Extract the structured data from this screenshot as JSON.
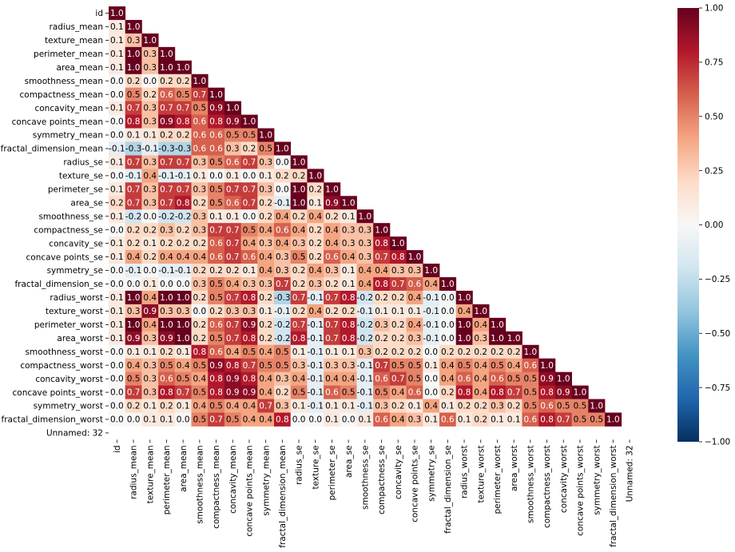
{
  "chart_data": {
    "type": "heatmap",
    "title": "",
    "xlabel": "",
    "ylabel": "",
    "mask": "upper-triangle",
    "vmin": -1.0,
    "vmax": 1.0,
    "colormap": "RdBu_r",
    "colormap_stops": [
      "#053061",
      "#2166ac",
      "#4393c3",
      "#92c5de",
      "#d1e5f0",
      "#f7f7f7",
      "#fddbc7",
      "#f4a582",
      "#d6604d",
      "#b2182b",
      "#67001f"
    ],
    "colorbar": {
      "placement": "right",
      "ticks": [
        1.0,
        0.75,
        0.5,
        0.25,
        0.0,
        -0.25,
        -0.5,
        -0.75,
        -1.0
      ],
      "tick_labels": [
        "1.00",
        "0.75",
        "0.50",
        "0.25",
        "0.00",
        "−0.25",
        "−0.50",
        "−0.75",
        "−1.00"
      ]
    },
    "labels": [
      "id",
      "radius_mean",
      "texture_mean",
      "perimeter_mean",
      "area_mean",
      "smoothness_mean",
      "compactness_mean",
      "concavity_mean",
      "concave points_mean",
      "symmetry_mean",
      "fractal_dimension_mean",
      "radius_se",
      "texture_se",
      "perimeter_se",
      "area_se",
      "smoothness_se",
      "compactness_se",
      "concavity_se",
      "concave points_se",
      "symmetry_se",
      "fractal_dimension_se",
      "radius_worst",
      "texture_worst",
      "perimeter_worst",
      "area_worst",
      "smoothness_worst",
      "compactness_worst",
      "concavity_worst",
      "concave points_worst",
      "symmetry_worst",
      "fractal_dimension_worst",
      "Unnamed: 32"
    ],
    "rows": [
      [
        1.0
      ],
      [
        0.1,
        1.0
      ],
      [
        0.1,
        0.3,
        1.0
      ],
      [
        0.1,
        1.0,
        0.3,
        1.0
      ],
      [
        0.1,
        1.0,
        0.3,
        1.0,
        1.0
      ],
      [
        -0.0,
        0.2,
        -0.0,
        0.2,
        0.2,
        1.0
      ],
      [
        0.0,
        0.5,
        0.2,
        0.6,
        0.5,
        0.7,
        1.0
      ],
      [
        0.1,
        0.7,
        0.3,
        0.7,
        0.7,
        0.5,
        0.9,
        1.0
      ],
      [
        0.0,
        0.8,
        0.3,
        0.9,
        0.8,
        0.6,
        0.8,
        0.9,
        1.0
      ],
      [
        -0.0,
        0.1,
        0.1,
        0.2,
        0.2,
        0.6,
        0.6,
        0.5,
        0.5,
        1.0
      ],
      [
        -0.1,
        -0.3,
        -0.1,
        -0.3,
        -0.3,
        0.6,
        0.6,
        0.3,
        0.2,
        0.5,
        1.0
      ],
      [
        0.1,
        0.7,
        0.3,
        0.7,
        0.7,
        0.3,
        0.5,
        0.6,
        0.7,
        0.3,
        0.0,
        1.0
      ],
      [
        -0.0,
        -0.1,
        0.4,
        -0.1,
        -0.1,
        0.1,
        0.0,
        0.1,
        0.0,
        0.1,
        0.2,
        0.2,
        1.0
      ],
      [
        0.1,
        0.7,
        0.3,
        0.7,
        0.7,
        0.3,
        0.5,
        0.7,
        0.7,
        0.3,
        0.0,
        1.0,
        0.2,
        1.0
      ],
      [
        0.2,
        0.7,
        0.3,
        0.7,
        0.8,
        0.2,
        0.5,
        0.6,
        0.7,
        0.2,
        -0.1,
        1.0,
        0.1,
        0.9,
        1.0
      ],
      [
        0.1,
        -0.2,
        0.0,
        -0.2,
        -0.2,
        0.3,
        0.1,
        0.1,
        0.0,
        0.2,
        0.4,
        0.2,
        0.4,
        0.2,
        0.1,
        1.0
      ],
      [
        0.0,
        0.2,
        0.2,
        0.3,
        0.2,
        0.3,
        0.7,
        0.7,
        0.5,
        0.4,
        0.6,
        0.4,
        0.2,
        0.4,
        0.3,
        0.3,
        1.0
      ],
      [
        0.1,
        0.2,
        0.1,
        0.2,
        0.2,
        0.2,
        0.6,
        0.7,
        0.4,
        0.3,
        0.4,
        0.3,
        0.2,
        0.4,
        0.3,
        0.3,
        0.8,
        1.0
      ],
      [
        0.1,
        0.4,
        0.2,
        0.4,
        0.4,
        0.4,
        0.6,
        0.7,
        0.6,
        0.4,
        0.3,
        0.5,
        0.2,
        0.6,
        0.4,
        0.3,
        0.7,
        0.8,
        1.0
      ],
      [
        -0.0,
        -0.1,
        0.0,
        -0.1,
        -0.1,
        0.2,
        0.2,
        0.2,
        0.1,
        0.4,
        0.3,
        0.2,
        0.4,
        0.3,
        0.1,
        0.4,
        0.4,
        0.3,
        0.3,
        1.0
      ],
      [
        0.0,
        -0.0,
        0.1,
        -0.0,
        -0.0,
        0.3,
        0.5,
        0.4,
        0.3,
        0.3,
        0.7,
        0.2,
        0.3,
        0.2,
        0.1,
        0.4,
        0.8,
        0.7,
        0.6,
        0.4,
        1.0
      ],
      [
        0.1,
        1.0,
        0.4,
        1.0,
        1.0,
        0.2,
        0.5,
        0.7,
        0.8,
        0.2,
        -0.3,
        0.7,
        -0.1,
        0.7,
        0.8,
        -0.2,
        0.2,
        0.2,
        0.4,
        -0.1,
        -0.0,
        1.0
      ],
      [
        0.1,
        0.3,
        0.9,
        0.3,
        0.3,
        0.0,
        0.2,
        0.3,
        0.3,
        0.1,
        -0.1,
        0.2,
        0.4,
        0.2,
        0.2,
        -0.1,
        0.1,
        0.1,
        0.1,
        -0.1,
        -0.0,
        0.4,
        1.0
      ],
      [
        0.1,
        1.0,
        0.4,
        1.0,
        1.0,
        0.2,
        0.6,
        0.7,
        0.9,
        0.2,
        -0.2,
        0.7,
        -0.1,
        0.7,
        0.8,
        -0.2,
        0.3,
        0.2,
        0.4,
        -0.1,
        -0.0,
        1.0,
        0.4,
        1.0
      ],
      [
        0.1,
        0.9,
        0.3,
        0.9,
        1.0,
        0.2,
        0.5,
        0.7,
        0.8,
        0.2,
        -0.2,
        0.8,
        -0.1,
        0.7,
        0.8,
        -0.2,
        0.2,
        0.2,
        0.3,
        -0.1,
        -0.0,
        1.0,
        0.3,
        1.0,
        1.0
      ],
      [
        0.0,
        0.1,
        0.1,
        0.2,
        0.1,
        0.8,
        0.6,
        0.4,
        0.5,
        0.4,
        0.5,
        0.1,
        -0.1,
        0.1,
        0.1,
        0.3,
        0.2,
        0.2,
        0.2,
        -0.0,
        0.2,
        0.2,
        0.2,
        0.2,
        0.2,
        1.0
      ],
      [
        -0.0,
        0.4,
        0.3,
        0.5,
        0.4,
        0.5,
        0.9,
        0.8,
        0.7,
        0.5,
        0.5,
        0.3,
        -0.1,
        0.3,
        0.3,
        -0.1,
        0.7,
        0.5,
        0.5,
        0.1,
        0.4,
        0.5,
        0.4,
        0.5,
        0.4,
        0.6,
        1.0
      ],
      [
        0.0,
        0.5,
        0.3,
        0.6,
        0.5,
        0.4,
        0.8,
        0.9,
        0.8,
        0.4,
        0.3,
        0.4,
        -0.1,
        0.4,
        0.4,
        -0.1,
        0.6,
        0.7,
        0.5,
        0.0,
        0.4,
        0.6,
        0.4,
        0.6,
        0.5,
        0.5,
        0.9,
        1.0
      ],
      [
        0.0,
        0.7,
        0.3,
        0.8,
        0.7,
        0.5,
        0.8,
        0.9,
        0.9,
        0.4,
        0.2,
        0.5,
        -0.1,
        0.6,
        0.5,
        -0.1,
        0.5,
        0.4,
        0.6,
        -0.0,
        0.2,
        0.8,
        0.4,
        0.8,
        0.7,
        0.5,
        0.8,
        0.9,
        1.0
      ],
      [
        -0.0,
        0.2,
        0.1,
        0.2,
        0.1,
        0.4,
        0.5,
        0.4,
        0.4,
        0.7,
        0.3,
        0.1,
        -0.1,
        0.1,
        0.1,
        -0.1,
        0.3,
        0.2,
        0.1,
        0.4,
        0.1,
        0.2,
        0.2,
        0.3,
        0.2,
        0.5,
        0.6,
        0.5,
        0.5,
        1.0
      ],
      [
        -0.0,
        0.0,
        0.1,
        0.1,
        0.0,
        0.5,
        0.7,
        0.5,
        0.4,
        0.4,
        0.8,
        0.0,
        -0.0,
        0.1,
        0.0,
        0.1,
        0.6,
        0.4,
        0.3,
        0.1,
        0.6,
        0.1,
        0.2,
        0.1,
        0.1,
        0.6,
        0.8,
        0.7,
        0.5,
        0.5,
        1.0
      ],
      []
    ]
  }
}
